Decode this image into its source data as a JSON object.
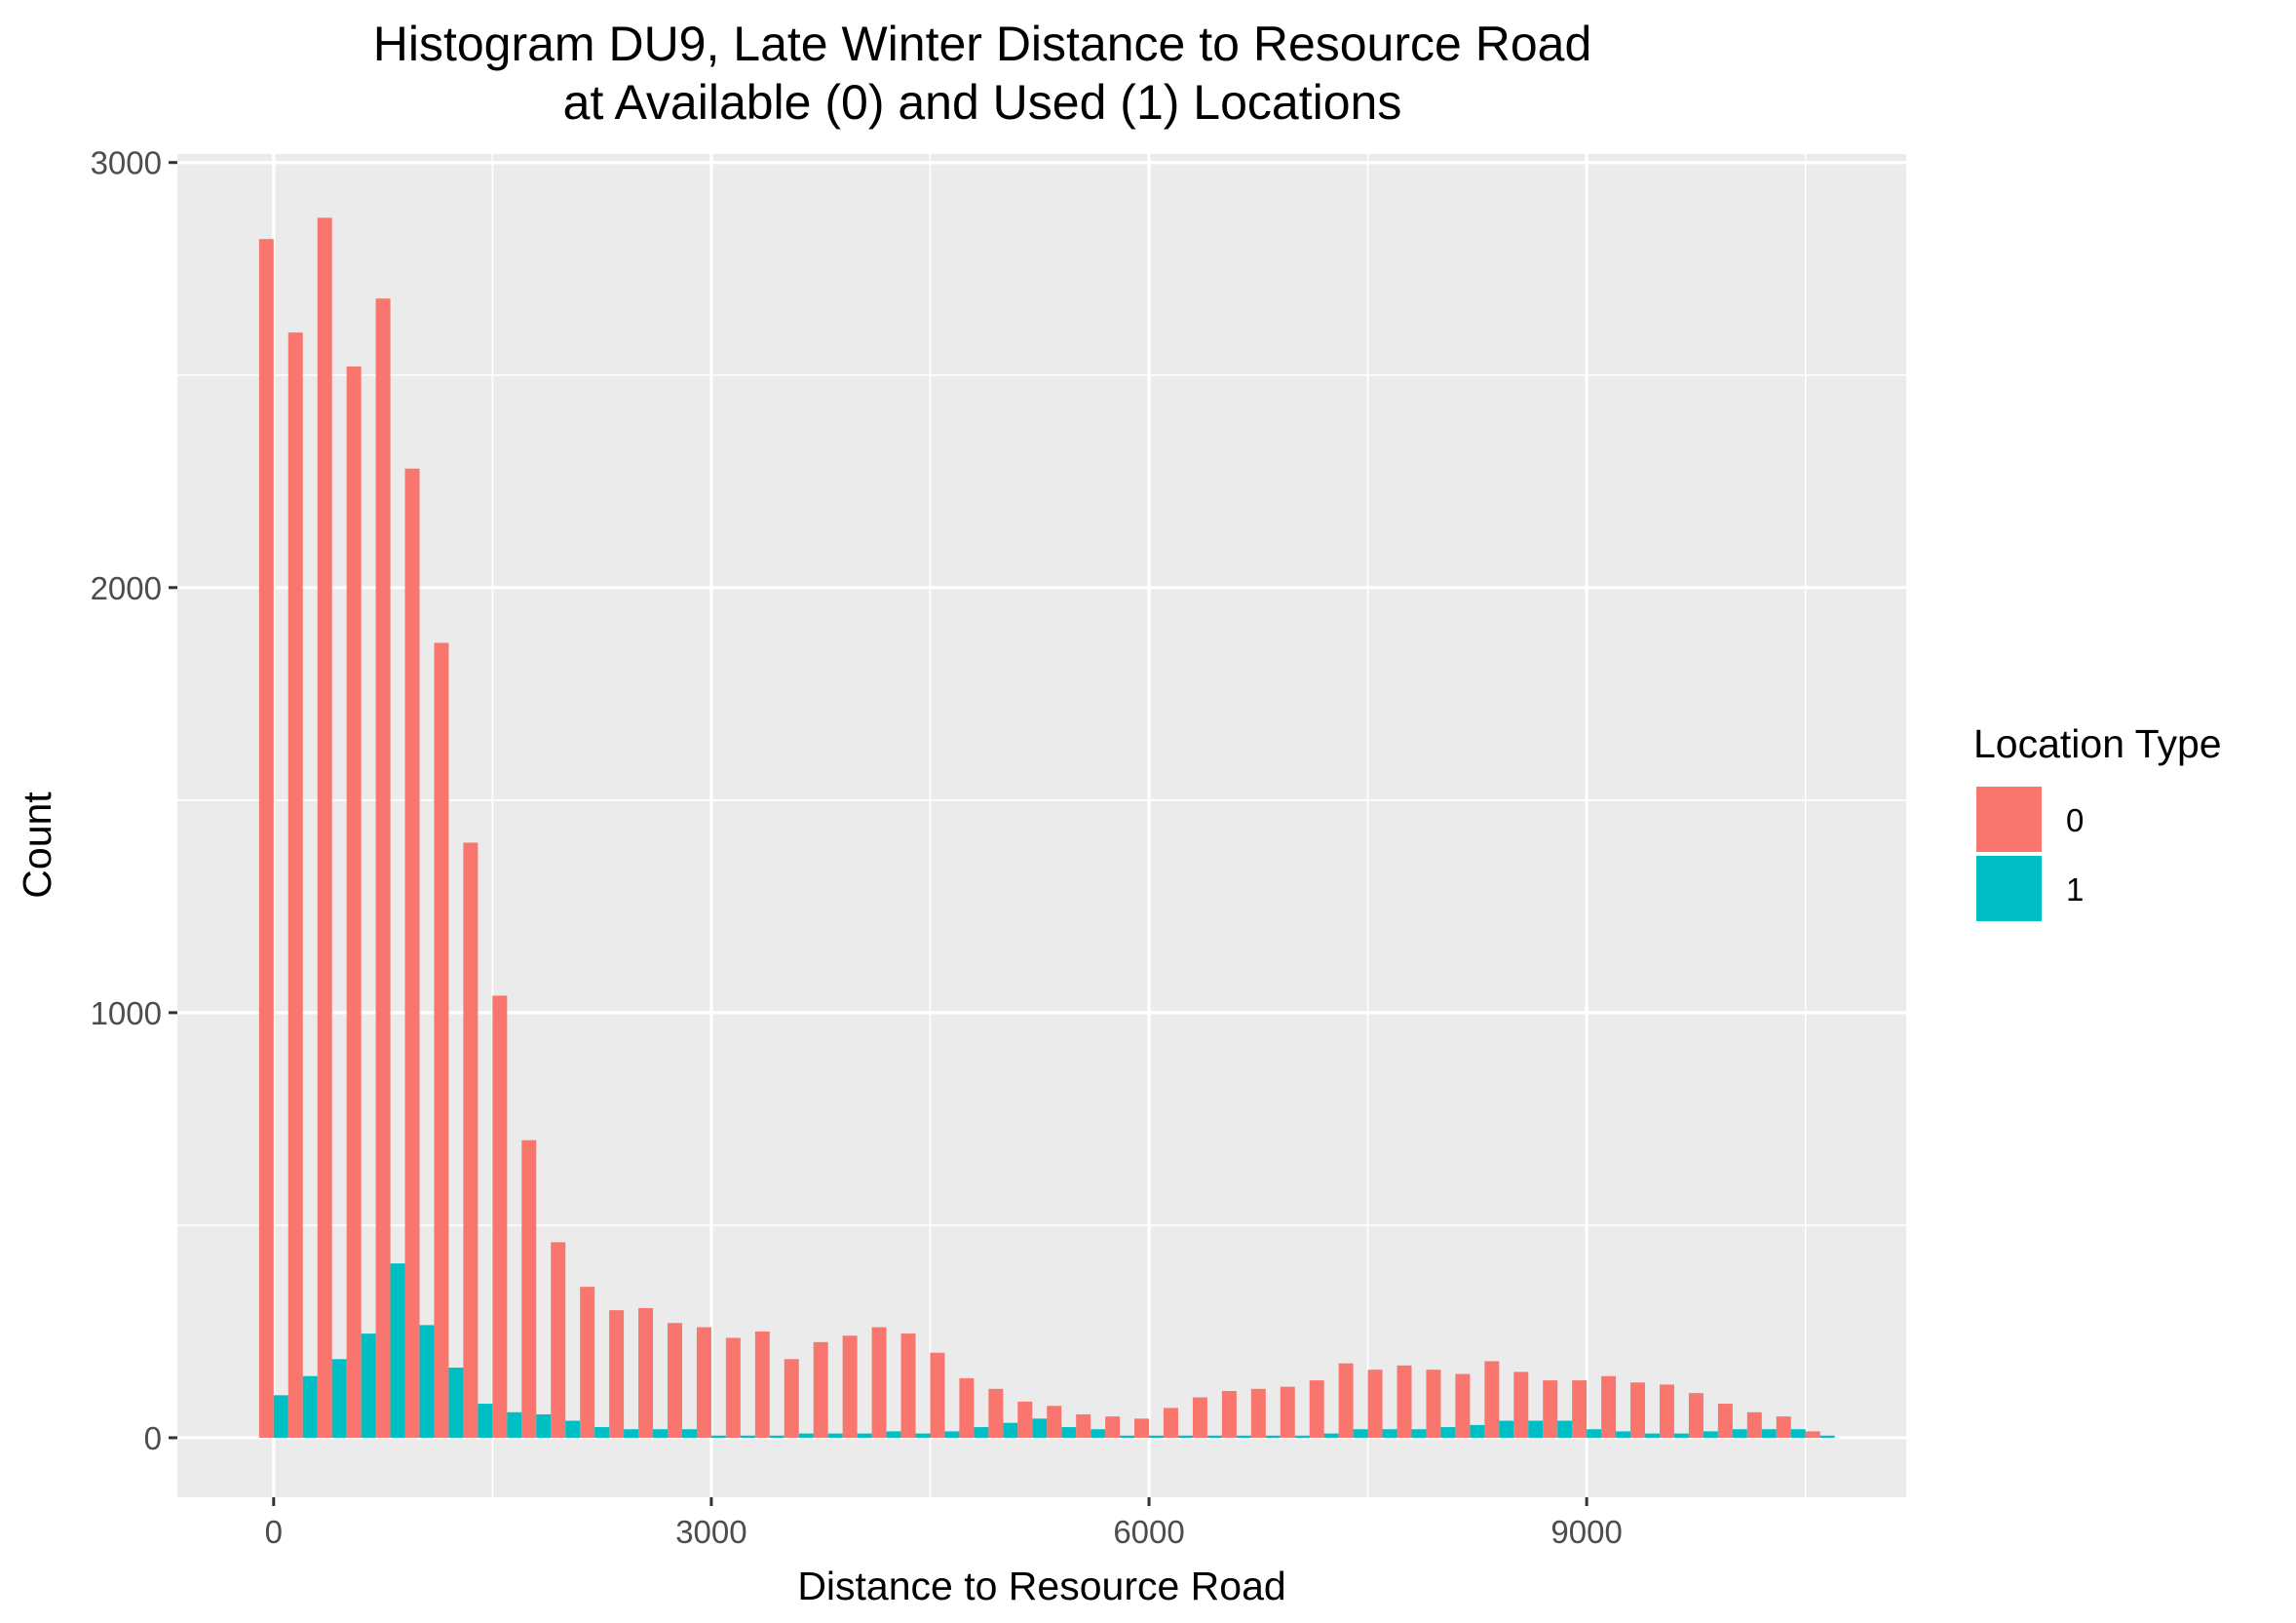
{
  "chart_data": {
    "type": "bar",
    "title_lines": [
      "Histogram DU9, Late Winter Distance to Resource Road",
      "at Available (0) and Used (1) Locations"
    ],
    "xlabel": "Distance to Resource Road",
    "ylabel": "Count",
    "xlim": [
      -660,
      11190
    ],
    "ylim": [
      -140,
      3020
    ],
    "x_ticks": [
      0,
      3000,
      6000,
      9000
    ],
    "x_tick_labels": [
      "0",
      "3000",
      "6000",
      "9000"
    ],
    "y_ticks": [
      0,
      1000,
      2000,
      3000
    ],
    "y_tick_labels": [
      "0",
      "1000",
      "2000",
      "3000"
    ],
    "bin_width": 200,
    "grid": true,
    "legend": {
      "title": "Location Type",
      "placement": "right",
      "entries": [
        {
          "label": "0",
          "color": "#F8766D"
        },
        {
          "label": "1",
          "color": "#00BFC4"
        }
      ]
    },
    "bin_centers": [
      0,
      200,
      400,
      600,
      800,
      1000,
      1200,
      1400,
      1600,
      1800,
      2000,
      2200,
      2400,
      2600,
      2800,
      3000,
      3200,
      3400,
      3600,
      3800,
      4000,
      4200,
      4400,
      4600,
      4800,
      5000,
      5200,
      5400,
      5600,
      5800,
      6000,
      6200,
      6400,
      6600,
      6800,
      7000,
      7200,
      7400,
      7600,
      7800,
      8000,
      8200,
      8400,
      8600,
      8800,
      9000,
      9200,
      9400,
      9600,
      9800,
      10000,
      10200,
      10400,
      10600
    ],
    "series": [
      {
        "name": "0",
        "color": "#F8766D",
        "values": [
          2820,
          2600,
          2870,
          2520,
          2680,
          2280,
          1870,
          1400,
          1040,
          700,
          460,
          355,
          300,
          305,
          270,
          260,
          235,
          250,
          185,
          225,
          240,
          260,
          245,
          200,
          140,
          115,
          85,
          75,
          55,
          50,
          45,
          70,
          95,
          110,
          115,
          120,
          135,
          175,
          160,
          170,
          160,
          150,
          180,
          155,
          135,
          135,
          145,
          130,
          125,
          105,
          80,
          60,
          50,
          15
        ]
      },
      {
        "name": "1",
        "color": "#00BFC4",
        "values": [
          100,
          145,
          185,
          245,
          410,
          265,
          165,
          80,
          60,
          55,
          40,
          25,
          20,
          20,
          20,
          5,
          5,
          5,
          10,
          10,
          10,
          15,
          10,
          15,
          25,
          35,
          45,
          25,
          20,
          5,
          5,
          5,
          5,
          5,
          5,
          5,
          10,
          20,
          20,
          20,
          25,
          30,
          40,
          40,
          40,
          20,
          15,
          10,
          10,
          15,
          20,
          20,
          20,
          5
        ]
      }
    ]
  }
}
